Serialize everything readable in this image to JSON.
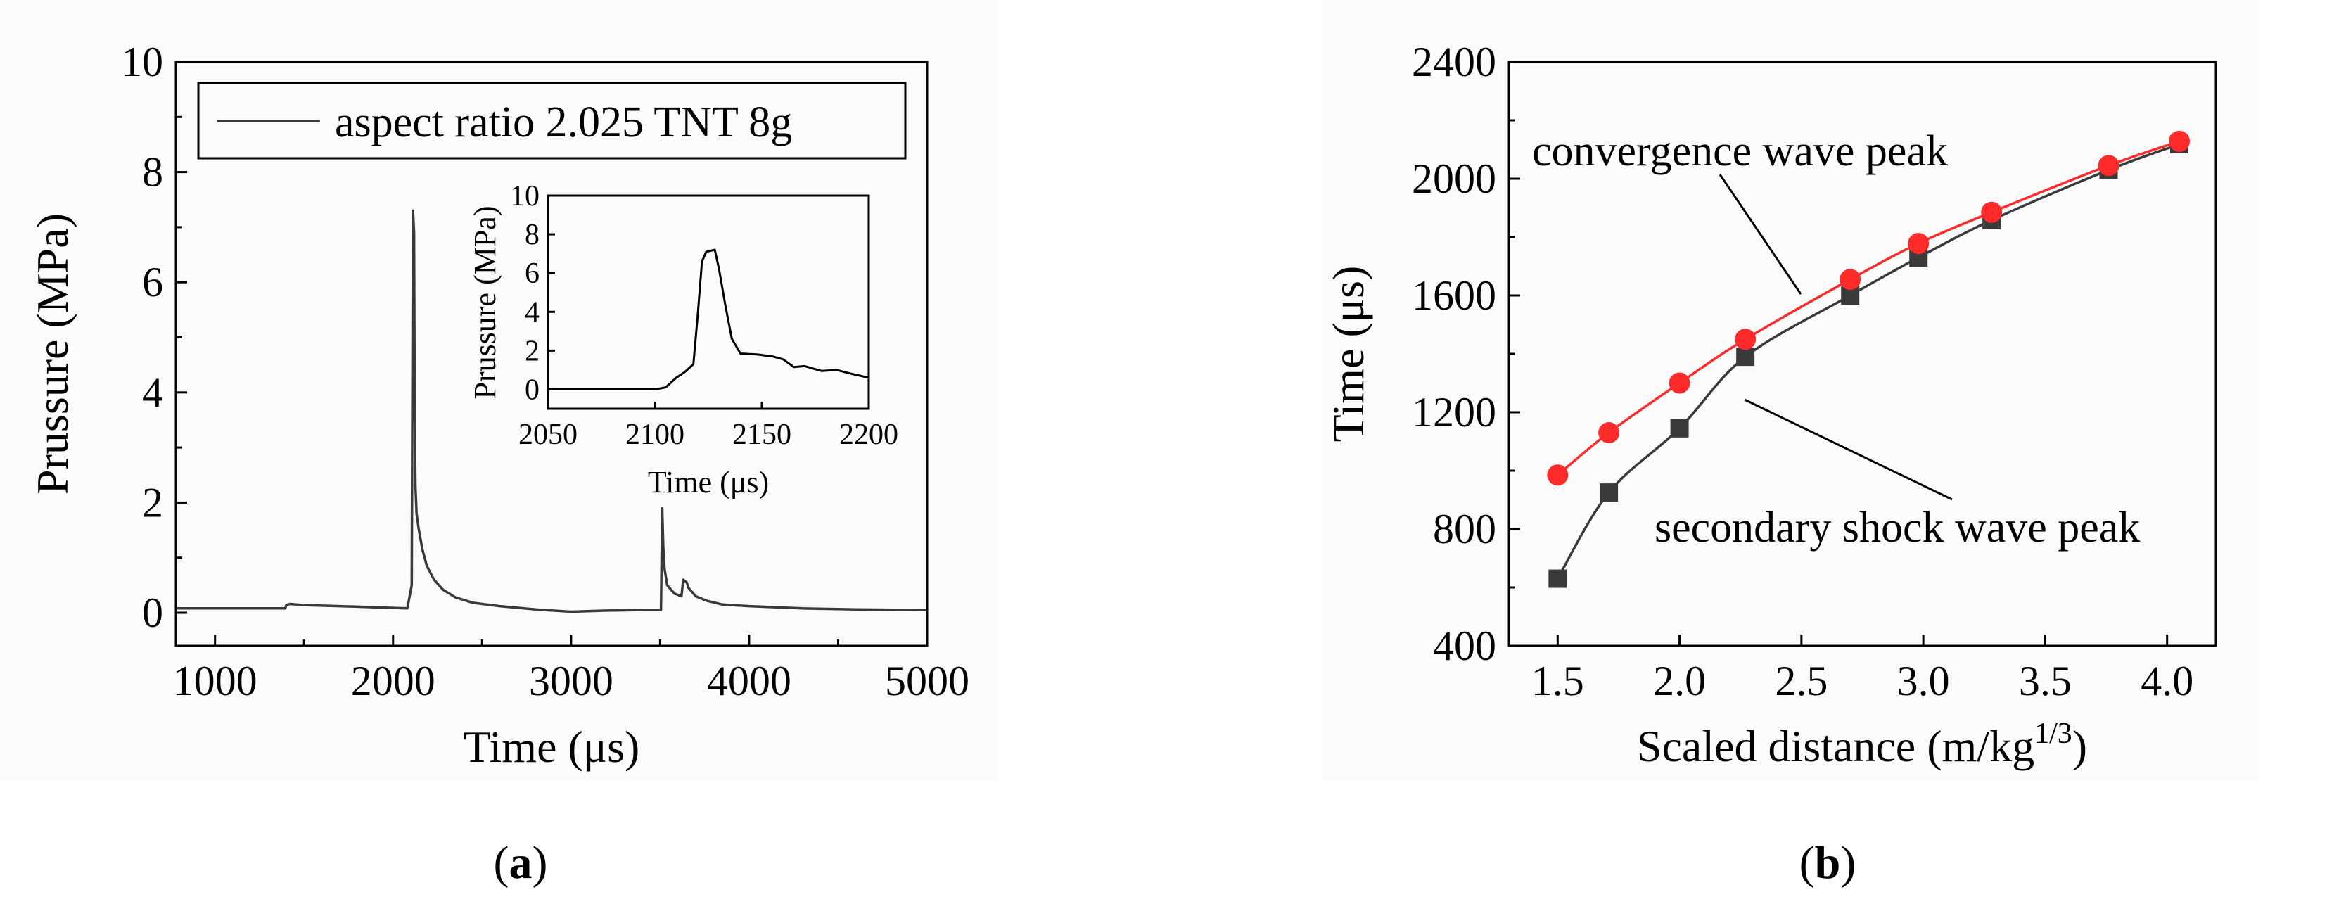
{
  "chart_data": [
    {
      "id": "a",
      "type": "line",
      "caption": "(a)",
      "caption_letter": "a",
      "xlabel": "Time (μs)",
      "ylabel": "Prussure (MPa)",
      "xlim": [
        780,
        5000
      ],
      "ylim": [
        -0.6,
        10
      ],
      "xticks": [
        1000,
        2000,
        3000,
        4000,
        5000
      ],
      "yticks": [
        0,
        2,
        4,
        6,
        8,
        10
      ],
      "grid": false,
      "legend": {
        "position": "top",
        "label": "aspect ratio 2.025 TNT 8g"
      },
      "series": [
        {
          "name": "aspect ratio 2.025 TNT 8g",
          "color": "#3a3a3a",
          "x": [
            780,
            1395,
            1400,
            1420,
            1500,
            1700,
            1900,
            2080,
            2105,
            2112,
            2118,
            2122,
            2126,
            2132,
            2145,
            2165,
            2190,
            2230,
            2280,
            2350,
            2450,
            2600,
            2800,
            3000,
            3200,
            3400,
            3505,
            3512,
            3518,
            3525,
            3540,
            3580,
            3620,
            3630,
            3650,
            3660,
            3700,
            3760,
            3850,
            4000,
            4300,
            4600,
            5000
          ],
          "y": [
            0.08,
            0.08,
            0.14,
            0.16,
            0.14,
            0.12,
            0.1,
            0.08,
            0.5,
            7.3,
            6.9,
            3.5,
            2.3,
            1.8,
            1.5,
            1.15,
            0.85,
            0.6,
            0.42,
            0.28,
            0.18,
            0.12,
            0.06,
            0.02,
            0.04,
            0.05,
            0.05,
            1.9,
            1.2,
            0.8,
            0.5,
            0.35,
            0.3,
            0.6,
            0.55,
            0.45,
            0.3,
            0.22,
            0.15,
            0.12,
            0.08,
            0.06,
            0.05
          ]
        }
      ],
      "inset": {
        "xlabel": "Time (μs)",
        "ylabel": "Prussure (MPa)",
        "xlim": [
          2050,
          2200
        ],
        "ylim": [
          -1,
          10
        ],
        "xticks": [
          2050,
          2100,
          2150,
          2200
        ],
        "yticks": [
          0,
          2,
          4,
          6,
          8,
          10
        ],
        "series": [
          {
            "name": "inset",
            "color": "#000000",
            "x": [
              2050,
              2070,
              2090,
              2100,
              2105,
              2110,
              2114,
              2118,
              2120,
              2122,
              2124,
              2126,
              2128,
              2130,
              2133,
              2136,
              2140,
              2148,
              2155,
              2160,
              2165,
              2170,
              2178,
              2185,
              2192,
              2200
            ],
            "y": [
              0,
              0,
              0,
              0,
              0.1,
              0.6,
              0.9,
              1.3,
              3.8,
              6.6,
              7.1,
              7.15,
              7.2,
              6.2,
              4.3,
              2.6,
              1.85,
              1.8,
              1.7,
              1.55,
              1.15,
              1.2,
              0.95,
              1.0,
              0.8,
              0.6
            ]
          }
        ]
      }
    },
    {
      "id": "b",
      "type": "line",
      "caption": "(b)",
      "caption_letter": "b",
      "xlabel": "Scaled distance (m/kg",
      "xlabel_sup": "1/3",
      "xlabel_end": ")",
      "ylabel": "Time (μs)",
      "xlim": [
        1.3,
        4.2
      ],
      "ylim": [
        400,
        2400
      ],
      "xticks": [
        1.5,
        2.0,
        2.5,
        3.0,
        3.5,
        4.0
      ],
      "xtick_labels": [
        "1.5",
        "2.0",
        "2.5",
        "3.0",
        "3.5",
        "4.0"
      ],
      "yticks": [
        400,
        800,
        1200,
        1600,
        2000,
        2400
      ],
      "grid": false,
      "series": [
        {
          "name": "convergence wave peak",
          "color": "#ff2b2b",
          "marker": "circle",
          "x": [
            1.5,
            1.71,
            2.0,
            2.27,
            2.7,
            2.98,
            3.28,
            3.76,
            4.05
          ],
          "y": [
            985,
            1130,
            1300,
            1450,
            1655,
            1778,
            1885,
            2045,
            2128
          ]
        },
        {
          "name": "secondary shock wave peak",
          "color": "#3a3a3a",
          "marker": "square",
          "x": [
            1.5,
            1.71,
            2.0,
            2.27,
            2.7,
            2.98,
            3.28,
            3.76,
            4.05
          ],
          "y": [
            630,
            925,
            1145,
            1390,
            1600,
            1730,
            1858,
            2030,
            2118
          ]
        }
      ],
      "annotations": [
        {
          "text": "convergence wave peak"
        },
        {
          "text": "secondary shock wave peak"
        }
      ]
    }
  ]
}
